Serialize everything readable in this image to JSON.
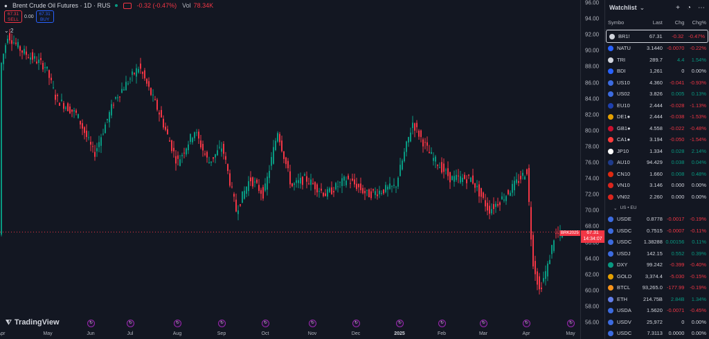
{
  "header": {
    "title": "Brent Crude Oil Futures · 1D · RUS",
    "change": "-0.32 (-0.47%)",
    "vol_label": "Vol",
    "vol_value": "78.34K",
    "sell_price": "67.31",
    "sell_label": "SELL",
    "spread": "0.00",
    "buy_price": "67.31",
    "buy_label": "BUY",
    "collapse_count": "2"
  },
  "price_scale": [
    "96.00",
    "94.00",
    "92.00",
    "90.00",
    "88.00",
    "86.00",
    "84.00",
    "82.00",
    "80.00",
    "78.00",
    "76.00",
    "74.00",
    "72.00",
    "70.00",
    "68.00",
    "66.00",
    "64.00",
    "62.00",
    "60.00",
    "58.00",
    "56.00"
  ],
  "time_axis": [
    "Apr",
    "May",
    "Jun",
    "Jul",
    "Aug",
    "Sep",
    "Oct",
    "Nov",
    "Dec",
    "2025",
    "Feb",
    "Mar",
    "Apr",
    "May"
  ],
  "last_price_label": "67.31",
  "countdown": "14:34:07",
  "contract_code": "BRK2025",
  "logo_text": "TradingView",
  "colors": {
    "up": "#089981",
    "down": "#f23645",
    "accent": "#2962ff",
    "background": "#131722"
  },
  "watchlist": {
    "title": "Watchlist",
    "columns": {
      "symbol": "Symbo",
      "last": "Last",
      "chg": "Chg",
      "chgp": "Chg%"
    },
    "section_label": "US • EU",
    "rows": [
      {
        "sym": "BR1!",
        "last": "67.31",
        "chg": "-0.32",
        "pct": "-0.47%",
        "color": "#d1d4dc",
        "dir": "neg"
      },
      {
        "sym": "NATU",
        "last": "3.1440",
        "chg": "-0.0070",
        "pct": "-0.22%",
        "color": "#2962ff",
        "dir": "neg"
      },
      {
        "sym": "TRI",
        "last": "289.7",
        "chg": "4.4",
        "pct": "1.54%",
        "color": "#d1d4dc",
        "dir": "pos"
      },
      {
        "sym": "BDI",
        "last": "1,261",
        "chg": "0",
        "pct": "0.00%",
        "color": "#2962ff",
        "dir": "neu"
      },
      {
        "sym": "US10",
        "last": "4.360",
        "chg": "-0.041",
        "pct": "-0.93%",
        "color": "#3c6be0",
        "dir": "neg"
      },
      {
        "sym": "US02",
        "last": "3.826",
        "chg": "0.005",
        "pct": "0.13%",
        "color": "#3c6be0",
        "dir": "pos"
      },
      {
        "sym": "EU10",
        "last": "2.444",
        "chg": "-0.028",
        "pct": "-1.13%",
        "color": "#1e40af",
        "dir": "neg"
      },
      {
        "sym": "DE1●",
        "last": "2.444",
        "chg": "-0.038",
        "pct": "-1.53%",
        "color": "#e5a000",
        "dir": "neg"
      },
      {
        "sym": "GB1●",
        "last": "4.558",
        "chg": "-0.022",
        "pct": "-0.48%",
        "color": "#c8102e",
        "dir": "neg"
      },
      {
        "sym": "CA1●",
        "last": "3.194",
        "chg": "-0.050",
        "pct": "-1.54%",
        "color": "#ff3b3b",
        "dir": "neg"
      },
      {
        "sym": "JP10",
        "last": "1.334",
        "chg": "0.028",
        "pct": "2.14%",
        "color": "#ffffff",
        "dir": "pos"
      },
      {
        "sym": "AU10",
        "last": "94.429",
        "chg": "0.038",
        "pct": "0.04%",
        "color": "#1e3a8a",
        "dir": "pos"
      },
      {
        "sym": "CN10",
        "last": "1.660",
        "chg": "0.008",
        "pct": "0.48%",
        "color": "#de2910",
        "dir": "pos"
      },
      {
        "sym": "VN10",
        "last": "3.146",
        "chg": "0.000",
        "pct": "0.00%",
        "color": "#da251d",
        "dir": "neu"
      },
      {
        "sym": "VN02",
        "last": "2.260",
        "chg": "0.000",
        "pct": "0.00%",
        "color": "#da251d",
        "dir": "neu"
      }
    ],
    "rows2": [
      {
        "sym": "USDE",
        "last": "0.8778",
        "chg": "-0.0017",
        "pct": "-0.19%",
        "color": "#3c6be0",
        "dir": "neg"
      },
      {
        "sym": "USDC",
        "last": "0.7515",
        "chg": "-0.0007",
        "pct": "-0.11%",
        "color": "#3c6be0",
        "dir": "neg"
      },
      {
        "sym": "USDC",
        "last": "1.38288",
        "chg": "0.00156",
        "pct": "0.11%",
        "color": "#3c6be0",
        "dir": "pos"
      },
      {
        "sym": "USDJ",
        "last": "142.15",
        "chg": "0.552",
        "pct": "0.39%",
        "color": "#3c6be0",
        "dir": "pos"
      },
      {
        "sym": "DXY",
        "last": "99.242",
        "chg": "-0.399",
        "pct": "-0.40%",
        "color": "#089981",
        "dir": "neg"
      },
      {
        "sym": "GOLD",
        "last": "3,374.4",
        "chg": "-5.030",
        "pct": "-0.15%",
        "color": "#e5a000",
        "dir": "neg"
      },
      {
        "sym": "BTCL",
        "last": "93,265.0",
        "chg": "-177.99",
        "pct": "-0.19%",
        "color": "#f7931a",
        "dir": "neg"
      },
      {
        "sym": "ETH",
        "last": "214.75B",
        "chg": "2.84B",
        "pct": "1.34%",
        "color": "#627eea",
        "dir": "pos"
      },
      {
        "sym": "USDA",
        "last": "1.5620",
        "chg": "-0.0071",
        "pct": "-0.45%",
        "color": "#3c6be0",
        "dir": "neg"
      },
      {
        "sym": "USDV",
        "last": "25,972",
        "chg": "0",
        "pct": "0.00%",
        "color": "#3c6be0",
        "dir": "neu"
      },
      {
        "sym": "USDC",
        "last": "7.3113",
        "chg": "0.0000",
        "pct": "0.00%",
        "color": "#3c6be0",
        "dir": "neu"
      }
    ]
  }
}
